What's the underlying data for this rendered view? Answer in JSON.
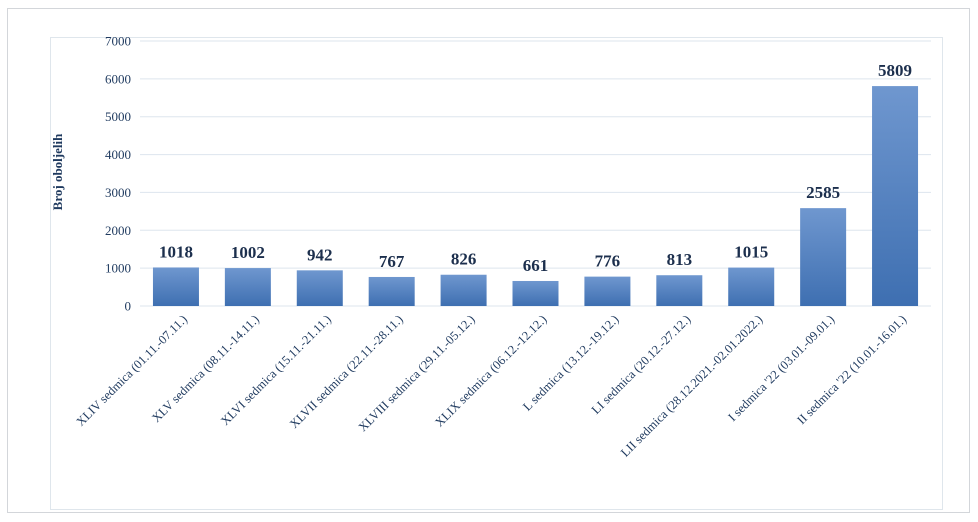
{
  "chart_data": {
    "type": "bar",
    "ylabel": "Broj oboljelih",
    "xlabel": "",
    "title": "",
    "ylim": [
      0,
      7000
    ],
    "yticks": [
      0,
      1000,
      2000,
      3000,
      4000,
      5000,
      6000,
      7000
    ],
    "grid": true,
    "categories": [
      "XLIV sedmica (01.11.-07.11.)",
      "XLV sedmica (08.11.-14.11.)",
      "XLVI sedmica (15.11.-21.11.)",
      "XLVII sedmica (22.11.-28.11.)",
      "XLVIII sedmica (29.11.-05.12.)",
      "XLIX sedmica (06.12.-12.12.)",
      "L sedmica (13.12.-19.12.)",
      "LI sedmica (20.12.-27.12.)",
      "LII sedmica (28.12.2021.-02.01.2022.)",
      "I sedmica '22 (03.01.-09.01.)",
      "II sedmica '22 (10.01.-16.01.)"
    ],
    "values": [
      1018,
      1002,
      942,
      767,
      826,
      661,
      776,
      813,
      1015,
      2585,
      5809
    ],
    "data_labels": [
      "1018",
      "1002",
      "942",
      "767",
      "826",
      "661",
      "776",
      "813",
      "1015",
      "2585",
      "5809"
    ],
    "bar_color_top": "#6f97cf",
    "bar_color_bottom": "#3e6fb1"
  }
}
